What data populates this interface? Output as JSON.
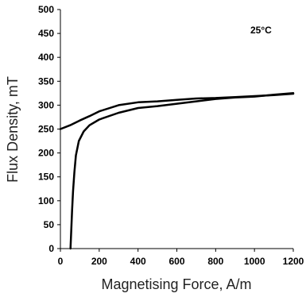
{
  "chart_data": {
    "type": "line",
    "title": "",
    "xlabel": "Magnetising Force, A/m",
    "ylabel": "Flux Density, mT",
    "xlim": [
      0,
      1200
    ],
    "ylim": [
      0,
      500
    ],
    "xticks": [
      0,
      200,
      400,
      600,
      800,
      1000,
      1200
    ],
    "yticks": [
      0,
      50,
      100,
      150,
      200,
      250,
      300,
      350,
      400,
      450,
      500
    ],
    "grid": false,
    "annotation": "25°C",
    "series": [
      {
        "x": [
          0,
          50,
          100,
          150,
          200,
          300,
          400,
          500,
          600,
          700,
          800,
          900,
          1000,
          1100,
          1200
        ],
        "y": [
          250,
          258,
          268,
          277,
          287,
          300,
          306,
          308,
          311,
          314,
          315,
          317,
          319,
          321,
          324
        ]
      },
      {
        "x": [
          52,
          56,
          60,
          65,
          72,
          80,
          95,
          120,
          150,
          200,
          300,
          400,
          500,
          600,
          700,
          800,
          900,
          1000,
          1100,
          1200
        ],
        "y": [
          0,
          40,
          80,
          120,
          160,
          195,
          225,
          245,
          258,
          270,
          284,
          294,
          298,
          303,
          308,
          313,
          316,
          318,
          322,
          325
        ]
      }
    ]
  }
}
